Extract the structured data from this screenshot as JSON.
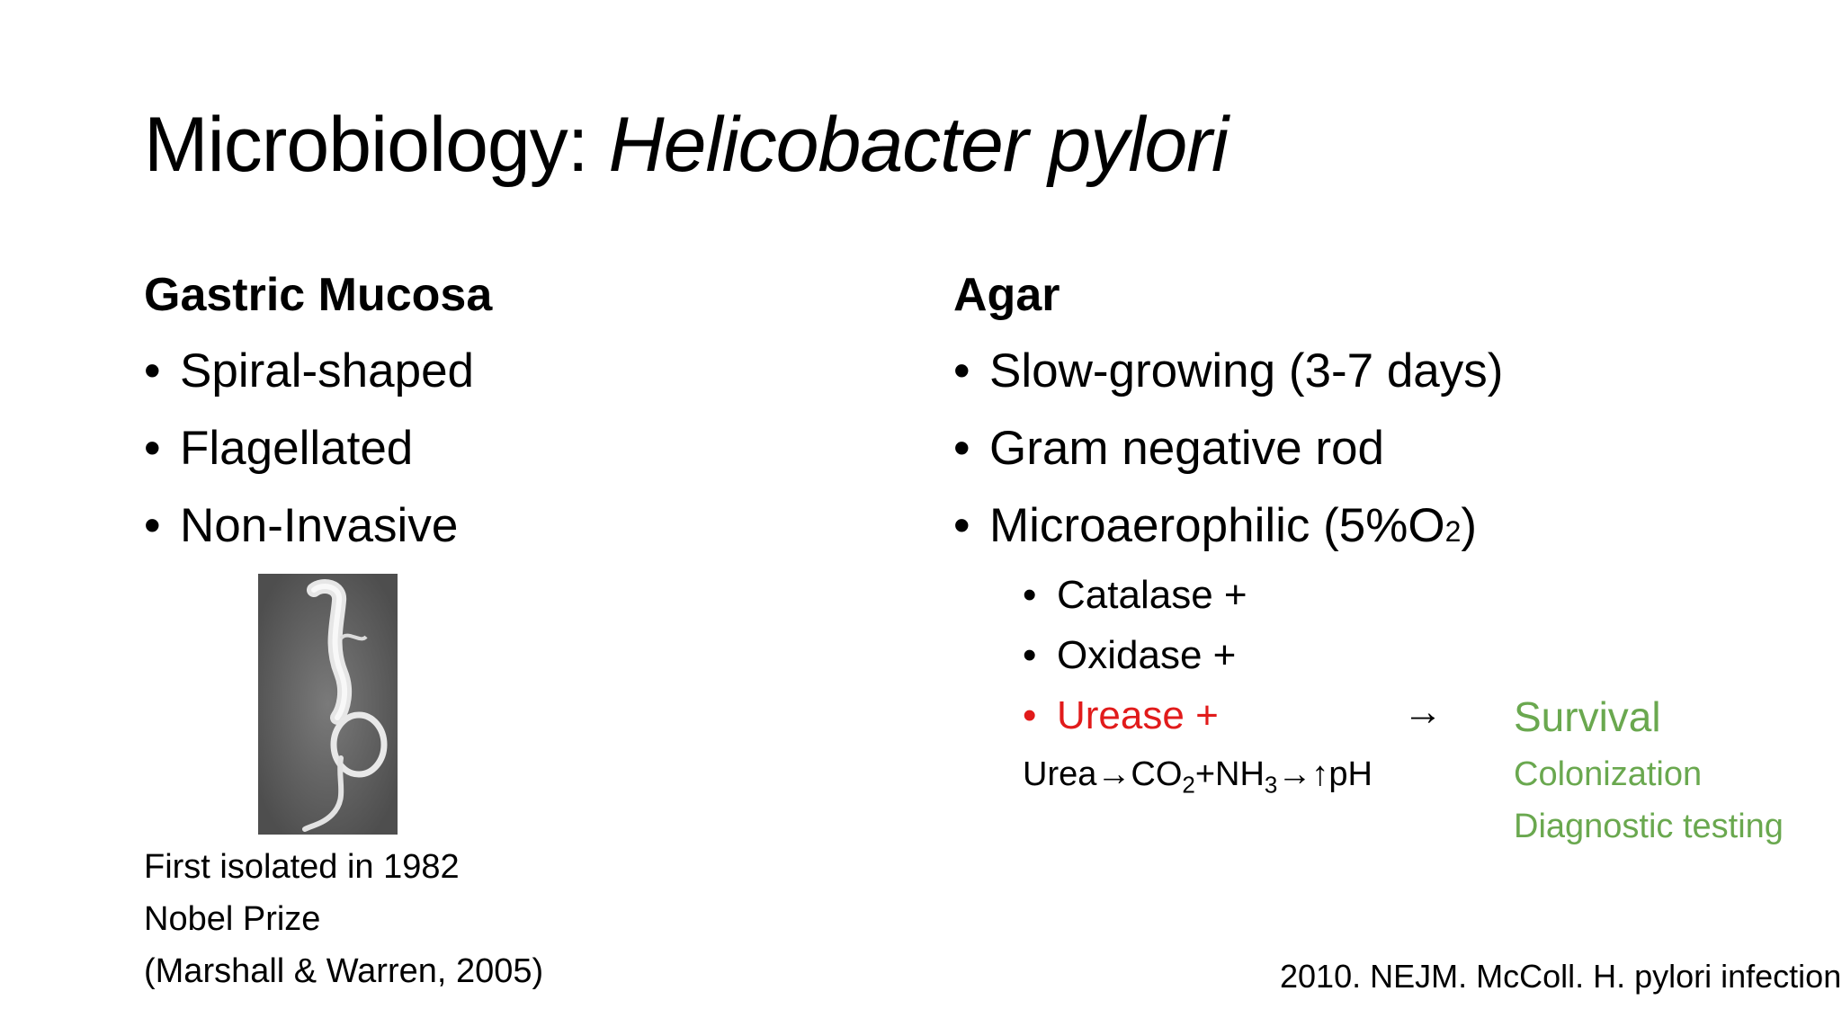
{
  "slide": {
    "title_plain": "Microbiology: ",
    "title_italic": "Helicobacter pylori"
  },
  "left": {
    "heading": "Gastric Mucosa",
    "bullets": [
      "Spiral-shaped",
      "Flagellated",
      "Non-Invasive"
    ],
    "notes": [
      "First isolated in 1982",
      "Nobel Prize",
      "(Marshall & Warren, 2005)"
    ],
    "image_label": "H. pylori micrograph"
  },
  "right": {
    "heading": "Agar",
    "bullets": {
      "b0": "Slow-growing (3-7 days)",
      "b1": "Gram negative rod",
      "b2_main": "Microaerophilic (5%O",
      "b2_sub": "2",
      "b2_tail": ")"
    },
    "sub_bullets": [
      "Catalase +",
      "Oxidase +",
      "Urease +"
    ],
    "reaction": {
      "urea": "Urea",
      "co2": "CO",
      "co2_sub": "2",
      "plus_nh": "+NH",
      "nh_sub": "3",
      "ph": "pH"
    },
    "outcomes": [
      "Survival",
      "Colonization",
      "Diagnostic testing"
    ]
  },
  "citation": "2010. NEJM. McColl. H. pylori infection",
  "colors": {
    "red": "#e11b1b",
    "green": "#6aa84f"
  },
  "icons": {
    "bullet": "•",
    "right_arrow": "→",
    "up_arrow": "↑"
  }
}
